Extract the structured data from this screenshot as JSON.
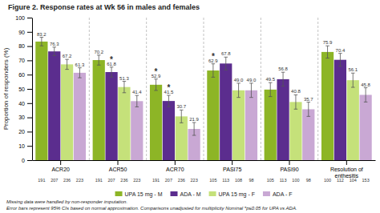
{
  "chart_data": {
    "type": "bar",
    "title": "Figure 2. Response rates at Wk 56 in males and females",
    "ylabel": "Proportion of responders (%)",
    "categories": [
      "ACR20",
      "ACR50",
      "ACR70",
      "PASI75",
      "PASI90",
      "Resolution of\nenthesitis"
    ],
    "series": [
      {
        "name": "UPA 15 mg - M",
        "color": "#8db526",
        "values": [
          83.2,
          70.2,
          52.9,
          62.9,
          49.5,
          75.9
        ],
        "value_labels": [
          "83.2",
          "70.2",
          "52.9",
          "62.9",
          "49.5",
          "75.9"
        ],
        "errors": [
          3.0,
          3.5,
          4.0,
          4.7,
          4.9,
          4.3
        ],
        "n_labels": [
          "191",
          "191",
          "191",
          "105",
          "105",
          "100"
        ]
      },
      {
        "name": "ADA - M",
        "color": "#5b2d8e",
        "values": [
          76.3,
          61.8,
          41.5,
          67.8,
          56.8,
          70.4
        ],
        "value_labels": [
          "76.3",
          "61.8",
          "41.5",
          "67.8",
          "56.8",
          "70.4"
        ],
        "errors": [
          3.0,
          3.5,
          4.0,
          4.5,
          4.9,
          4.5
        ],
        "n_labels": [
          "207",
          "207",
          "207",
          "113",
          "113",
          "112"
        ]
      },
      {
        "name": "UPA 15 mg - F",
        "color": "#c5e17a",
        "values": [
          67.2,
          51.3,
          30.7,
          49.0,
          40.8,
          56.1
        ],
        "value_labels": [
          "67.2",
          "51.3",
          "30.7",
          "49.0",
          "40.8",
          "56.1"
        ],
        "errors": [
          3.5,
          4.0,
          4.5,
          5.0,
          5.0,
          5.0
        ],
        "n_labels": [
          "236",
          "236",
          "236",
          "108",
          "100",
          "104"
        ]
      },
      {
        "name": "ADA - F",
        "color": "#c9a8d4",
        "values": [
          61.3,
          41.4,
          21.9,
          49.0,
          35.7,
          45.8
        ],
        "value_labels": [
          "61.3",
          "41.4",
          "21.9",
          "49.0",
          "35.7",
          "45.8"
        ],
        "errors": [
          3.5,
          4.0,
          4.5,
          5.0,
          5.0,
          5.0
        ],
        "n_labels": [
          "223",
          "223",
          "223",
          "98",
          "98",
          "153"
        ]
      }
    ],
    "annotations": [
      {
        "text": "*",
        "category": "ACR50",
        "series": "ADA - M"
      },
      {
        "text": "*",
        "category": "ACR70",
        "series": "UPA 15 mg - M"
      },
      {
        "text": "*",
        "category": "ACR70",
        "series": "ADA - M"
      },
      {
        "text": "*",
        "category": "PASI75",
        "series": "UPA 15 mg - M"
      }
    ],
    "footnotes": [
      "Missing data were handled by non-responder imputation.",
      "Error bars represent 95% CIs based on normal approximation.  Comparisons unadjusted for multiplicity  Nominal  *p≤0.05 for UPA vs ADA."
    ],
    "ylim": [
      0,
      100
    ],
    "yticks": [
      0,
      10,
      20,
      30,
      40,
      50,
      60,
      70,
      80,
      90,
      100
    ],
    "data_labels": true,
    "grid": false,
    "legend": "bottom"
  }
}
